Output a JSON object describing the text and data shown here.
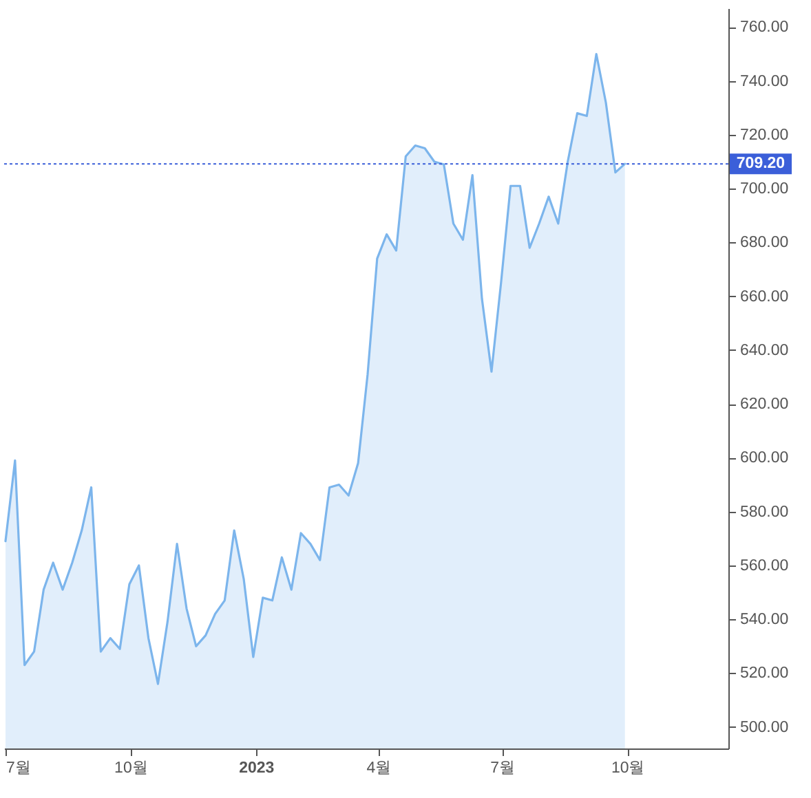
{
  "chart_data": {
    "type": "area",
    "x": [
      "2022-07-01",
      "2022-07-08",
      "2022-07-15",
      "2022-07-22",
      "2022-07-29",
      "2022-08-05",
      "2022-08-12",
      "2022-08-19",
      "2022-08-26",
      "2022-09-02",
      "2022-09-09",
      "2022-09-16",
      "2022-09-23",
      "2022-09-30",
      "2022-10-07",
      "2022-10-14",
      "2022-10-21",
      "2022-10-28",
      "2022-11-04",
      "2022-11-11",
      "2022-11-18",
      "2022-11-25",
      "2022-12-02",
      "2022-12-09",
      "2022-12-16",
      "2022-12-23",
      "2022-12-30",
      "2023-01-06",
      "2023-01-13",
      "2023-01-20",
      "2023-01-27",
      "2023-02-03",
      "2023-02-10",
      "2023-02-17",
      "2023-02-24",
      "2023-03-03",
      "2023-03-10",
      "2023-03-17",
      "2023-03-24",
      "2023-03-31",
      "2023-04-07",
      "2023-04-14",
      "2023-04-21",
      "2023-04-28",
      "2023-05-05",
      "2023-05-12",
      "2023-05-19",
      "2023-05-26",
      "2023-06-02",
      "2023-06-09",
      "2023-06-16",
      "2023-06-23",
      "2023-06-30",
      "2023-07-07",
      "2023-07-14",
      "2023-07-21",
      "2023-07-28",
      "2023-08-04",
      "2023-08-11",
      "2023-08-18",
      "2023-08-25",
      "2023-09-01",
      "2023-09-08",
      "2023-09-15",
      "2023-09-22",
      "2023-09-29"
    ],
    "series": [
      {
        "color": "#7cb5ec",
        "values": [
          569,
          599,
          523,
          528,
          551,
          561,
          551,
          561,
          573,
          589,
          528,
          533,
          529,
          553,
          560,
          533,
          516,
          539,
          568,
          544,
          530,
          534,
          542,
          547,
          573,
          555,
          526,
          548,
          547,
          563,
          551,
          572,
          568,
          562,
          589,
          590,
          586,
          598,
          631,
          674,
          683,
          677,
          712,
          716,
          715,
          710,
          709,
          687,
          681,
          705,
          659,
          632,
          665,
          701,
          701,
          678,
          687,
          697,
          687,
          710,
          728,
          727,
          750,
          732,
          706,
          709.2
        ]
      }
    ],
    "xlim": [
      "2022-06-30",
      "2023-12-14"
    ],
    "xticks": [
      {
        "value": "2022-07-01",
        "label": "7월"
      },
      {
        "value": "2022-10-01",
        "label": "10월"
      },
      {
        "value": "2023-01-01",
        "label": "2023"
      },
      {
        "value": "2023-04-01",
        "label": "4월"
      },
      {
        "value": "2023-07-01",
        "label": "7월"
      },
      {
        "value": "2023-10-01",
        "label": "10월"
      }
    ],
    "ylim": [
      492,
      767
    ],
    "yticks": [
      {
        "value": 500,
        "label": "500.00"
      },
      {
        "value": 520,
        "label": "520.00"
      },
      {
        "value": 540,
        "label": "540.00"
      },
      {
        "value": 560,
        "label": "560.00"
      },
      {
        "value": 580,
        "label": "580.00"
      },
      {
        "value": 600,
        "label": "600.00"
      },
      {
        "value": 620,
        "label": "620.00"
      },
      {
        "value": 640,
        "label": "640.00"
      },
      {
        "value": 660,
        "label": "660.00"
      },
      {
        "value": 680,
        "label": "680.00"
      },
      {
        "value": 700,
        "label": "700.00"
      },
      {
        "value": 720,
        "label": "720.00"
      },
      {
        "value": 740,
        "label": "740.00"
      },
      {
        "value": 760,
        "label": "760.00"
      }
    ],
    "ref_lines": [
      {
        "axis": "y",
        "value": 709.2,
        "label": "709.20",
        "color": "#3b5fd9",
        "line_style": "dotted"
      }
    ],
    "grid": false
  }
}
